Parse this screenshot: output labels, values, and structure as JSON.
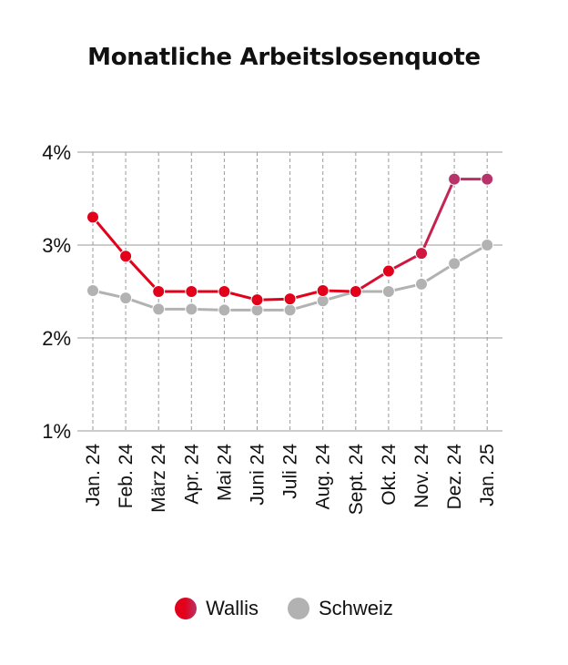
{
  "title": "Monatliche Arbeitslosenquote",
  "chart_data": {
    "type": "line",
    "categories": [
      "Jan. 24",
      "Feb. 24",
      "März 24",
      "Apr. 24",
      "Mai 24",
      "Juni 24",
      "Juli 24",
      "Aug. 24",
      "Sept. 24",
      "Okt. 24",
      "Nov. 24",
      "Dez. 24",
      "Jan. 25"
    ],
    "ylim": [
      1,
      4
    ],
    "yticks": [
      1,
      2,
      3,
      4
    ],
    "ytick_labels": [
      "1%",
      "2%",
      "3%",
      "4%"
    ],
    "grid": true,
    "legend": "bottom",
    "series": [
      {
        "name": "Wallis",
        "values": [
          3.3,
          2.88,
          2.5,
          2.5,
          2.5,
          2.41,
          2.42,
          2.51,
          2.5,
          2.72,
          2.91,
          3.71,
          3.71
        ],
        "color_start": "#e2001a",
        "color_end": "#b8336a"
      },
      {
        "name": "Schweiz",
        "values": [
          2.51,
          2.43,
          2.31,
          2.31,
          2.3,
          2.3,
          2.3,
          2.4,
          2.5,
          2.5,
          2.58,
          2.8,
          3.0
        ],
        "color": "#b2b2b2"
      }
    ]
  },
  "legend": {
    "wallis_label": "Wallis",
    "schweiz_label": "Schweiz"
  }
}
